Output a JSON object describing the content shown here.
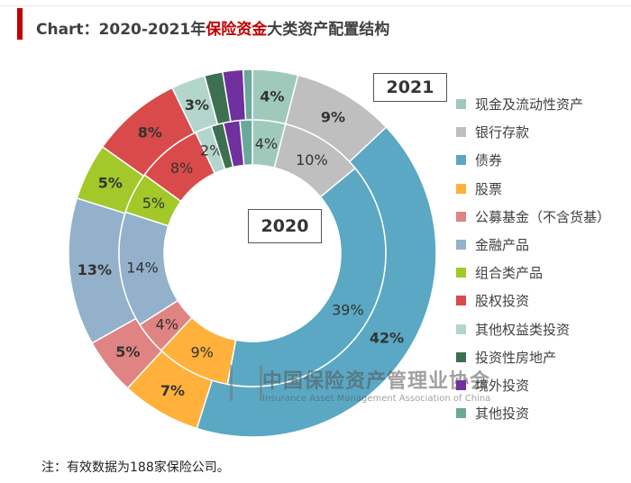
{
  "title": {
    "prefix": "Chart：2020-2021年",
    "highlight": "保险资金",
    "suffix": "大类资产配置结构"
  },
  "note": "注：有效数据为188家保险公司。",
  "watermark": {
    "cn": "中国保险资产管理业协会",
    "en": "Insurance Asset Management Association of China"
  },
  "chart_data": {
    "type": "pie",
    "subtype": "nested-donut",
    "title": "2020-2021年保险资金大类资产配置结构",
    "categories": [
      "现金及流动性资产",
      "银行存款",
      "债券",
      "股票",
      "公募基金（不含货基）",
      "金融产品",
      "组合类产品",
      "股权投资",
      "其他权益类投资",
      "投资性房地产",
      "境外投资",
      "其他投资"
    ],
    "colors": [
      "#9fc9bb",
      "#bfbfbf",
      "#5aa8c4",
      "#ffb13b",
      "#e08383",
      "#94b1cb",
      "#a2c82a",
      "#d94a4a",
      "#b3d6cc",
      "#3d7050",
      "#7030a0",
      "#6aa89a"
    ],
    "series": [
      {
        "name": "2021",
        "ring": "outer",
        "values": [
          4,
          9,
          42,
          7,
          5,
          13,
          5,
          8,
          3,
          1.6,
          1.8,
          0.8
        ],
        "labels": [
          "4%",
          "9%",
          "42%",
          "7%",
          "5%",
          "13%",
          "5%",
          "8%",
          "3%",
          "",
          "",
          ""
        ]
      },
      {
        "name": "2020",
        "ring": "inner",
        "values": [
          4,
          10,
          39,
          9,
          4,
          14,
          5,
          8,
          2,
          1.5,
          2,
          1.5
        ],
        "labels": [
          "4%",
          "10%",
          "39%",
          "9%",
          "4%",
          "14%",
          "5%",
          "8%",
          "2%",
          "",
          "",
          ""
        ]
      }
    ],
    "legend_position": "right"
  }
}
